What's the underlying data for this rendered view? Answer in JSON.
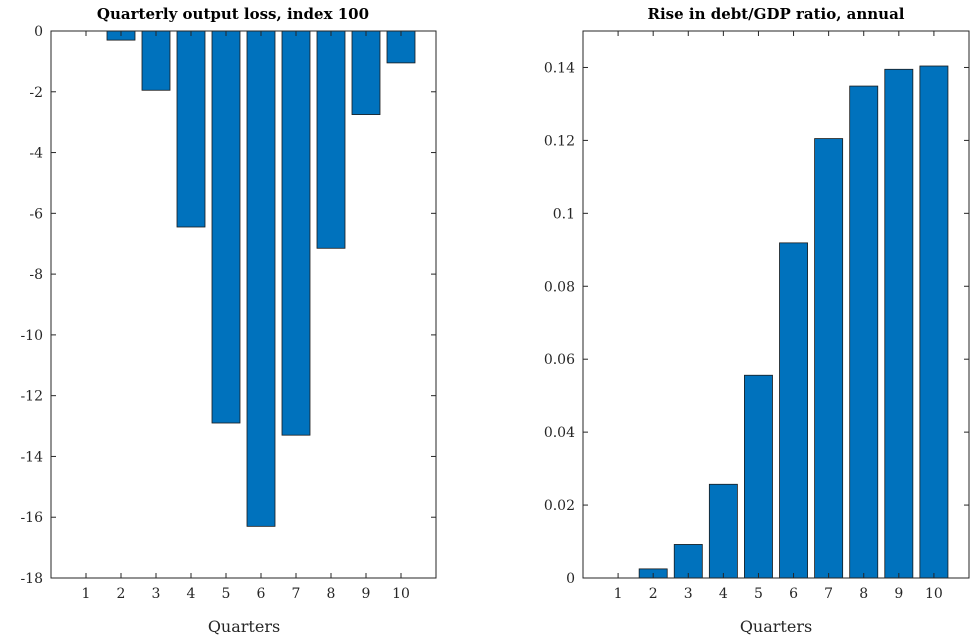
{
  "chart_data": [
    {
      "type": "bar",
      "title": "Quarterly output loss, index 100",
      "xlabel": "Quarters",
      "ylabel": "",
      "categories": [
        "1",
        "2",
        "3",
        "4",
        "5",
        "6",
        "7",
        "8",
        "9",
        "10"
      ],
      "values": [
        0,
        -0.3,
        -1.95,
        -6.45,
        -12.9,
        -16.3,
        -13.3,
        -7.15,
        -2.75,
        -1.05
      ],
      "ylim": [
        -18,
        0
      ],
      "xlim": [
        0,
        11
      ],
      "yticks": [
        0,
        -2,
        -4,
        -6,
        -8,
        -10,
        -12,
        -14,
        -16,
        -18
      ],
      "ytick_labels": [
        "0",
        "-2",
        "-4",
        "-6",
        "-8",
        "-10",
        "-12",
        "-14",
        "-16",
        "-18"
      ],
      "bar_color": "#0072BD",
      "grid": false
    },
    {
      "type": "bar",
      "title": "Rise in debt/GDP ratio, annual",
      "xlabel": "Quarters",
      "ylabel": "",
      "categories": [
        "1",
        "2",
        "3",
        "4",
        "5",
        "6",
        "7",
        "8",
        "9",
        "10"
      ],
      "values": [
        0,
        0.0025,
        0.0092,
        0.0257,
        0.0556,
        0.0919,
        0.1205,
        0.1349,
        0.1395,
        0.1404
      ],
      "ylim": [
        0,
        0.15
      ],
      "xlim": [
        0,
        11
      ],
      "yticks": [
        0,
        0.02,
        0.04,
        0.06,
        0.08,
        0.1,
        0.12,
        0.14
      ],
      "ytick_labels": [
        "0",
        "0.02",
        "0.04",
        "0.06",
        "0.08",
        "0.1",
        "0.12",
        "0.14"
      ],
      "bar_color": "#0072BD",
      "grid": false
    }
  ]
}
